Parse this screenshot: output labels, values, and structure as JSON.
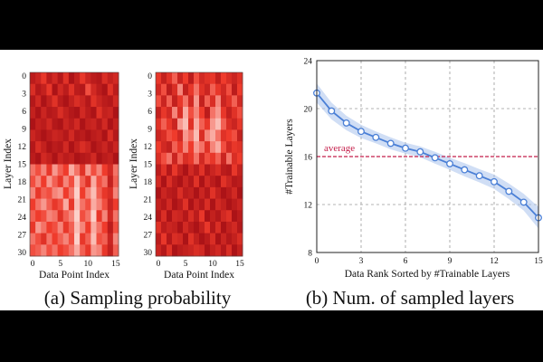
{
  "colors": {
    "heat_low": "#fff5f0",
    "heat_high": "#a50f15",
    "line": "#4a7fd6",
    "band": "#a9c3ec",
    "average": "#c41e4a",
    "grid": "#9a9a9a"
  },
  "chart_data": [
    {
      "type": "heatmap",
      "id": "a-left",
      "xlabel": "Data Point Index",
      "ylabel": "Layer Index",
      "x_ticks": [
        "0",
        "5",
        "10",
        "15"
      ],
      "y_ticks": [
        "0",
        "3",
        "6",
        "9",
        "12",
        "15",
        "18",
        "21",
        "24",
        "27",
        "30"
      ],
      "x_count": 16,
      "y_count": 16,
      "values": [
        [
          0.85,
          0.75,
          0.55,
          0.85,
          0.7,
          0.9,
          0.6,
          0.95,
          0.8,
          0.55,
          0.75,
          0.85,
          0.9,
          0.65,
          0.8,
          0.7
        ],
        [
          0.65,
          0.9,
          0.8,
          0.55,
          0.95,
          0.7,
          0.85,
          0.6,
          0.85,
          0.9,
          0.45,
          0.7,
          0.85,
          0.95,
          0.6,
          0.85
        ],
        [
          0.9,
          0.7,
          0.95,
          0.8,
          0.6,
          0.85,
          0.95,
          0.8,
          0.65,
          0.75,
          0.9,
          0.6,
          0.75,
          0.85,
          0.9,
          0.7
        ],
        [
          0.8,
          0.95,
          0.75,
          0.9,
          0.85,
          0.65,
          0.8,
          0.9,
          0.95,
          0.7,
          0.85,
          0.95,
          0.6,
          0.8,
          0.75,
          0.95
        ],
        [
          0.95,
          0.8,
          0.85,
          0.7,
          0.9,
          0.95,
          0.75,
          0.85,
          0.7,
          0.95,
          0.8,
          0.75,
          0.9,
          0.7,
          0.95,
          0.8
        ],
        [
          0.75,
          0.85,
          0.95,
          0.85,
          0.75,
          0.8,
          0.9,
          0.7,
          0.9,
          0.85,
          0.95,
          0.85,
          0.8,
          0.95,
          0.65,
          0.9
        ],
        [
          0.9,
          0.65,
          0.8,
          0.95,
          0.85,
          0.9,
          0.7,
          0.95,
          0.8,
          0.65,
          0.75,
          0.95,
          0.85,
          0.75,
          0.9,
          0.75
        ],
        [
          0.85,
          0.95,
          0.7,
          0.8,
          0.95,
          0.75,
          0.85,
          0.8,
          0.95,
          0.9,
          0.85,
          0.7,
          0.95,
          0.85,
          0.8,
          0.95
        ],
        [
          0.35,
          0.45,
          0.3,
          0.55,
          0.25,
          0.4,
          0.5,
          0.2,
          0.35,
          0.6,
          0.25,
          0.45,
          0.3,
          0.5,
          0.7,
          0.35
        ],
        [
          0.45,
          0.3,
          0.5,
          0.25,
          0.4,
          0.55,
          0.3,
          0.45,
          0.15,
          0.4,
          0.6,
          0.2,
          0.45,
          0.35,
          0.8,
          0.4
        ],
        [
          0.3,
          0.55,
          0.4,
          0.45,
          0.3,
          0.25,
          0.5,
          0.35,
          0.1,
          0.5,
          0.3,
          0.15,
          0.4,
          0.55,
          0.65,
          0.3
        ],
        [
          0.5,
          0.35,
          0.25,
          0.4,
          0.55,
          0.45,
          0.2,
          0.55,
          0.15,
          0.35,
          0.45,
          0.2,
          0.3,
          0.45,
          0.75,
          0.5
        ],
        [
          0.4,
          0.5,
          0.45,
          0.3,
          0.35,
          0.6,
          0.4,
          0.3,
          0.1,
          0.45,
          0.35,
          0.1,
          0.55,
          0.3,
          0.7,
          0.35
        ],
        [
          0.55,
          0.25,
          0.35,
          0.5,
          0.45,
          0.3,
          0.55,
          0.4,
          0.15,
          0.3,
          0.5,
          0.2,
          0.35,
          0.5,
          0.85,
          0.45
        ],
        [
          0.35,
          0.45,
          0.6,
          0.35,
          0.5,
          0.4,
          0.3,
          0.45,
          0.1,
          0.55,
          0.4,
          0.15,
          0.45,
          0.4,
          0.75,
          0.3
        ],
        [
          0.45,
          0.4,
          0.3,
          0.45,
          0.35,
          0.5,
          0.45,
          0.35,
          0.2,
          0.4,
          0.55,
          0.25,
          0.3,
          0.55,
          0.8,
          0.4
        ]
      ]
    },
    {
      "type": "heatmap",
      "id": "a-right",
      "xlabel": "Data Point Index",
      "ylabel": "Layer Index",
      "x_ticks": [
        "0",
        "5",
        "10",
        "15"
      ],
      "y_ticks": [
        "0",
        "3",
        "6",
        "9",
        "12",
        "15",
        "18",
        "21",
        "24",
        "27",
        "30"
      ],
      "x_count": 16,
      "y_count": 16,
      "values": [
        [
          0.55,
          0.8,
          0.6,
          0.4,
          0.75,
          0.5,
          0.85,
          0.45,
          0.7,
          0.6,
          0.55,
          0.8,
          0.5,
          0.65,
          0.75,
          0.6
        ],
        [
          0.7,
          0.45,
          0.85,
          0.65,
          0.3,
          0.8,
          0.55,
          0.35,
          0.6,
          0.75,
          0.4,
          0.55,
          0.7,
          0.45,
          0.85,
          0.5
        ],
        [
          0.45,
          0.75,
          0.4,
          0.8,
          0.55,
          0.35,
          0.7,
          0.25,
          0.8,
          0.4,
          0.65,
          0.3,
          0.75,
          0.6,
          0.4,
          0.7
        ],
        [
          0.8,
          0.55,
          0.7,
          0.3,
          0.65,
          0.2,
          0.45,
          0.3,
          0.5,
          0.85,
          0.35,
          0.25,
          0.55,
          0.8,
          0.6,
          0.45
        ],
        [
          0.6,
          0.4,
          0.55,
          0.75,
          0.25,
          0.15,
          0.6,
          0.2,
          0.4,
          0.55,
          0.25,
          0.15,
          0.4,
          0.65,
          0.75,
          0.55
        ],
        [
          0.75,
          0.65,
          0.45,
          0.5,
          0.7,
          0.25,
          0.35,
          0.15,
          0.65,
          0.3,
          0.2,
          0.35,
          0.6,
          0.5,
          0.45,
          0.8
        ],
        [
          0.5,
          0.7,
          0.8,
          0.4,
          0.55,
          0.3,
          0.5,
          0.25,
          0.35,
          0.6,
          0.3,
          0.2,
          0.45,
          0.7,
          0.55,
          0.6
        ],
        [
          0.65,
          0.45,
          0.35,
          0.75,
          0.4,
          0.65,
          0.55,
          0.35,
          0.7,
          0.45,
          0.55,
          0.4,
          0.75,
          0.35,
          0.65,
          0.5
        ],
        [
          0.85,
          0.6,
          0.9,
          0.55,
          0.8,
          0.95,
          0.7,
          0.85,
          0.6,
          0.9,
          0.75,
          0.65,
          0.85,
          0.9,
          0.55,
          0.8
        ],
        [
          0.7,
          0.95,
          0.65,
          0.85,
          0.95,
          0.75,
          0.9,
          0.6,
          0.95,
          0.7,
          0.85,
          0.95,
          0.6,
          0.75,
          0.9,
          0.85
        ],
        [
          0.95,
          0.75,
          0.85,
          0.9,
          0.65,
          0.85,
          0.8,
          0.95,
          0.75,
          0.9,
          0.6,
          0.8,
          0.95,
          0.85,
          0.7,
          0.95
        ],
        [
          0.8,
          0.9,
          0.7,
          0.95,
          0.85,
          0.6,
          0.95,
          0.75,
          0.9,
          0.65,
          0.95,
          0.7,
          0.8,
          0.95,
          0.85,
          0.75
        ],
        [
          0.9,
          0.65,
          0.95,
          0.7,
          0.75,
          0.9,
          0.65,
          0.85,
          0.55,
          0.95,
          0.8,
          0.9,
          0.7,
          0.6,
          0.95,
          0.85
        ],
        [
          0.6,
          0.85,
          0.75,
          0.8,
          0.95,
          0.7,
          0.85,
          0.95,
          0.8,
          0.55,
          0.9,
          0.65,
          0.95,
          0.8,
          0.7,
          0.9
        ],
        [
          0.85,
          0.55,
          0.9,
          0.65,
          0.7,
          0.95,
          0.6,
          0.8,
          0.95,
          0.85,
          0.65,
          0.95,
          0.75,
          0.9,
          0.8,
          0.65
        ],
        [
          0.75,
          0.9,
          0.6,
          0.95,
          0.85,
          0.8,
          0.75,
          0.65,
          0.7,
          0.95,
          0.8,
          0.7,
          0.9,
          0.65,
          0.95,
          0.8
        ]
      ]
    },
    {
      "type": "line",
      "id": "b",
      "xlabel": "Data Rank Sorted by #Trainable Layers",
      "ylabel": "#Trainable Layers",
      "xlim": [
        0,
        15
      ],
      "ylim": [
        8,
        24
      ],
      "x_ticks": [
        0,
        3,
        6,
        9,
        12,
        15
      ],
      "y_ticks": [
        8,
        12,
        16,
        20,
        24
      ],
      "grid": true,
      "series": [
        {
          "name": "#Trainable Layers",
          "x": [
            0,
            1,
            2,
            3,
            4,
            5,
            6,
            7,
            8,
            9,
            10,
            11,
            12,
            13,
            14,
            15
          ],
          "values": [
            21.3,
            19.8,
            18.8,
            18.1,
            17.6,
            17.1,
            16.7,
            16.4,
            15.9,
            15.4,
            14.9,
            14.4,
            13.9,
            13.1,
            12.2,
            10.9
          ],
          "band_halfwidth": [
            0.8,
            0.7,
            0.6,
            0.55,
            0.5,
            0.5,
            0.45,
            0.45,
            0.5,
            0.5,
            0.55,
            0.55,
            0.6,
            0.65,
            0.7,
            0.9
          ]
        }
      ],
      "average": {
        "label": "average",
        "value": 16.0
      }
    }
  ],
  "captions": {
    "a": "(a) Sampling probability",
    "b": "(b) Num. of sampled layers"
  }
}
